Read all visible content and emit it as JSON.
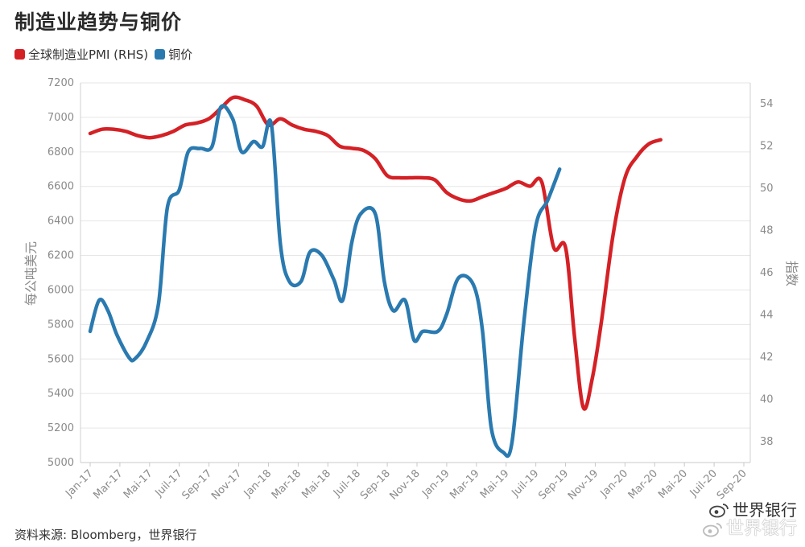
{
  "header": {
    "title": "制造业趋势与铜价"
  },
  "source_text": "资料来源: Bloomberg，世界银行",
  "watermark": {
    "line1": "世界银行",
    "line2": "世界银行"
  },
  "chart_data": {
    "type": "line",
    "title": "制造业趋势与铜价",
    "ylabel_left": "每公吨美元",
    "ylabel_right": "指数",
    "ylim_left": [
      5000,
      7200
    ],
    "ylim_right": [
      37,
      55
    ],
    "yticks_left": [
      5000,
      5200,
      5400,
      5600,
      5800,
      6000,
      6200,
      6400,
      6600,
      6800,
      7000,
      7200
    ],
    "yticks_right": [
      38,
      40,
      42,
      44,
      46,
      48,
      50,
      52,
      54
    ],
    "grid": true,
    "legend_position": "top-left",
    "x_labels": [
      "Jan-17",
      "Mar-17",
      "Mai-17",
      "Juil-17",
      "Sep-17",
      "Nov-17",
      "Jan-18",
      "Mar-18",
      "Mai-18",
      "Juil-18",
      "Sep-18",
      "Nov-18",
      "Jan-19",
      "Mar-19",
      "Mai-19",
      "Juil-19",
      "Sep-19",
      "Nov-19",
      "Jan-20",
      "Mar-20",
      "Mai-20",
      "Juil-20",
      "Sep-20"
    ],
    "colors": {
      "pmi": "#d42126",
      "copper": "#2a7ab0"
    },
    "series": [
      {
        "name": "全球制造业PMI (RHS)",
        "axis": "right",
        "color": "#d42126",
        "points": [
          [
            0,
            52.6
          ],
          [
            0.4,
            52.8
          ],
          [
            0.8,
            52.8
          ],
          [
            1.2,
            52.7
          ],
          [
            1.6,
            52.5
          ],
          [
            2.0,
            52.4
          ],
          [
            2.4,
            52.5
          ],
          [
            2.8,
            52.7
          ],
          [
            3.2,
            53.0
          ],
          [
            3.6,
            53.1
          ],
          [
            4.0,
            53.3
          ],
          [
            4.4,
            53.8
          ],
          [
            4.8,
            54.3
          ],
          [
            5.2,
            54.2
          ],
          [
            5.6,
            53.9
          ],
          [
            6.0,
            53.0
          ],
          [
            6.4,
            53.3
          ],
          [
            6.8,
            53.0
          ],
          [
            7.2,
            52.8
          ],
          [
            7.6,
            52.7
          ],
          [
            8.0,
            52.5
          ],
          [
            8.4,
            52.0
          ],
          [
            8.8,
            51.9
          ],
          [
            9.2,
            51.8
          ],
          [
            9.6,
            51.4
          ],
          [
            10.0,
            50.6
          ],
          [
            10.4,
            50.5
          ],
          [
            10.8,
            50.5
          ],
          [
            11.2,
            50.5
          ],
          [
            11.6,
            50.4
          ],
          [
            12.0,
            49.8
          ],
          [
            12.4,
            49.5
          ],
          [
            12.8,
            49.4
          ],
          [
            13.2,
            49.6
          ],
          [
            13.6,
            49.8
          ],
          [
            14.0,
            50.0
          ],
          [
            14.4,
            50.3
          ],
          [
            14.8,
            50.1
          ],
          [
            15.2,
            50.3
          ],
          [
            15.6,
            47.2
          ],
          [
            16.0,
            47.2
          ],
          [
            16.3,
            43.0
          ],
          [
            16.6,
            39.6
          ],
          [
            16.9,
            41.0
          ],
          [
            17.2,
            43.6
          ],
          [
            17.6,
            47.8
          ],
          [
            18.0,
            50.5
          ],
          [
            18.4,
            51.5
          ],
          [
            18.8,
            52.1
          ],
          [
            19.2,
            52.3
          ]
        ]
      },
      {
        "name": "铜价",
        "axis": "left",
        "color": "#2a7ab0",
        "points": [
          [
            0,
            5760
          ],
          [
            0.3,
            5940
          ],
          [
            0.6,
            5880
          ],
          [
            0.9,
            5740
          ],
          [
            1.3,
            5610
          ],
          [
            1.5,
            5600
          ],
          [
            1.9,
            5700
          ],
          [
            2.3,
            5920
          ],
          [
            2.6,
            6480
          ],
          [
            3.0,
            6580
          ],
          [
            3.3,
            6800
          ],
          [
            3.7,
            6820
          ],
          [
            4.1,
            6830
          ],
          [
            4.4,
            7060
          ],
          [
            4.8,
            6990
          ],
          [
            5.1,
            6800
          ],
          [
            5.5,
            6860
          ],
          [
            5.8,
            6830
          ],
          [
            6.1,
            6960
          ],
          [
            6.4,
            6270
          ],
          [
            6.7,
            6050
          ],
          [
            7.1,
            6050
          ],
          [
            7.4,
            6220
          ],
          [
            7.8,
            6200
          ],
          [
            8.2,
            6060
          ],
          [
            8.5,
            5940
          ],
          [
            8.8,
            6270
          ],
          [
            9.1,
            6440
          ],
          [
            9.6,
            6440
          ],
          [
            9.9,
            6050
          ],
          [
            10.2,
            5880
          ],
          [
            10.6,
            5940
          ],
          [
            10.9,
            5710
          ],
          [
            11.2,
            5760
          ],
          [
            11.7,
            5760
          ],
          [
            12.0,
            5860
          ],
          [
            12.4,
            6070
          ],
          [
            12.9,
            6030
          ],
          [
            13.2,
            5770
          ],
          [
            13.5,
            5200
          ],
          [
            13.9,
            5060
          ],
          [
            14.2,
            5120
          ],
          [
            14.6,
            5820
          ],
          [
            15.0,
            6370
          ],
          [
            15.4,
            6520
          ],
          [
            15.8,
            6700
          ]
        ]
      }
    ]
  }
}
